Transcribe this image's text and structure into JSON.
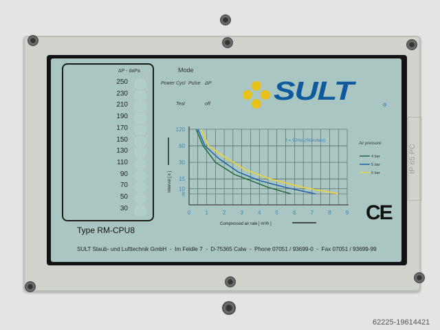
{
  "panel": {
    "scale_header": "ΔP - daPa",
    "scale_values": [
      "250",
      "230",
      "210",
      "190",
      "170",
      "150",
      "130",
      "110",
      "90",
      "70",
      "50",
      "30"
    ],
    "type_label": "Type RM-CPU8",
    "mode_title": "Mode",
    "mode_labels": [
      "Power",
      "Cycl",
      "Pulse",
      "ΔP"
    ],
    "test_label": "Test",
    "off_label": "off",
    "brand": "SULT",
    "registered": "®",
    "ce_mark": "CE",
    "footer": "SULT Staub- und Lufttechnik GmbH  -  Im Feldle 7  -  D-75365 Calw  -  Phone 07051 / 93699-0  -  Fax 07051 / 93699-99",
    "side_label": "IP 65 PC",
    "colors": {
      "panel": "#a9c6c2",
      "brand_blue": "#0e5a9c",
      "flower_yellow": "#e7c21a"
    }
  },
  "chart_data": {
    "type": "line",
    "annotation": "t = 90ms (Standard)",
    "xlabel": "Compressed air rate [ m³/h ]",
    "ylabel": "Interval [ s ]",
    "x_ticks": [
      "0",
      "1",
      "2",
      "3",
      "4",
      "5",
      "6",
      "7",
      "8",
      "9"
    ],
    "y_ticks": [
      "120",
      "60",
      "30",
      "15",
      "10",
      "8"
    ],
    "y_scale": "log",
    "xlim": [
      0,
      9
    ],
    "ylim": [
      8,
      120
    ],
    "grid": true,
    "legend_title": "Air pressure",
    "legend_placement": "right",
    "series": [
      {
        "name": "4 bar",
        "color": "#1f6a3a",
        "points": [
          [
            0.4,
            120
          ],
          [
            0.8,
            60
          ],
          [
            1.5,
            30
          ],
          [
            2.6,
            18
          ],
          [
            3.5,
            14
          ],
          [
            4.5,
            10.5
          ],
          [
            5.8,
            8
          ]
        ]
      },
      {
        "name": "5 bar",
        "color": "#1d5fa8",
        "points": [
          [
            0.5,
            120
          ],
          [
            0.9,
            60
          ],
          [
            1.7,
            35
          ],
          [
            2.8,
            20
          ],
          [
            4,
            14
          ],
          [
            5.5,
            10.5
          ],
          [
            7.2,
            8
          ]
        ]
      },
      {
        "name": "6 bar",
        "color": "#e2d24a",
        "points": [
          [
            0.7,
            120
          ],
          [
            1.1,
            60
          ],
          [
            2,
            38
          ],
          [
            3.2,
            22
          ],
          [
            4.6,
            15
          ],
          [
            6.5,
            10.5
          ],
          [
            8.5,
            8
          ]
        ]
      }
    ]
  },
  "watermark": "62225-19614421"
}
